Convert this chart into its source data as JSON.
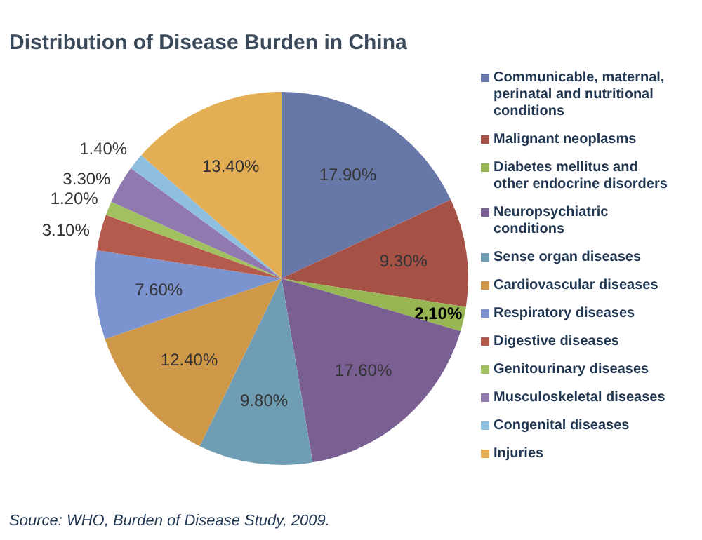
{
  "chart_data": {
    "type": "pie",
    "title": "Distribution of Disease Burden in China",
    "categories": [
      "Communicable, maternal, perinatal and nutritional conditions",
      "Malignant neoplasms",
      "Diabetes mellitus and other endocrine disorders",
      "Neuropsychiatric conditions",
      "Sense organ diseases",
      "Cardiovascular diseases",
      "Respiratory diseases",
      "Digestive diseases",
      "Genitourinary diseases",
      "Musculoskeletal diseases",
      "Congenital diseases",
      "Injuries"
    ],
    "values": [
      17.9,
      9.3,
      2.1,
      17.6,
      9.8,
      12.4,
      7.6,
      3.1,
      1.2,
      3.3,
      1.4,
      13.4
    ],
    "value_labels": [
      "17.90%",
      "9.30%",
      "2,10%",
      "17.60%",
      "9.80%",
      "12.40%",
      "7.60%",
      "3.10%",
      "1.20%",
      "3.30%",
      "1.40%",
      "13.40%"
    ],
    "colors": [
      "#6777a8",
      "#a65146",
      "#97b552",
      "#7a5f93",
      "#6f9db4",
      "#cf9748",
      "#7b94cf",
      "#b55b4e",
      "#a1c05f",
      "#9079ae",
      "#8fbfdf",
      "#e4ae55"
    ],
    "legend": "right",
    "annotations": [
      "Source: WHO, Burden of Disease Study, 2009."
    ]
  }
}
